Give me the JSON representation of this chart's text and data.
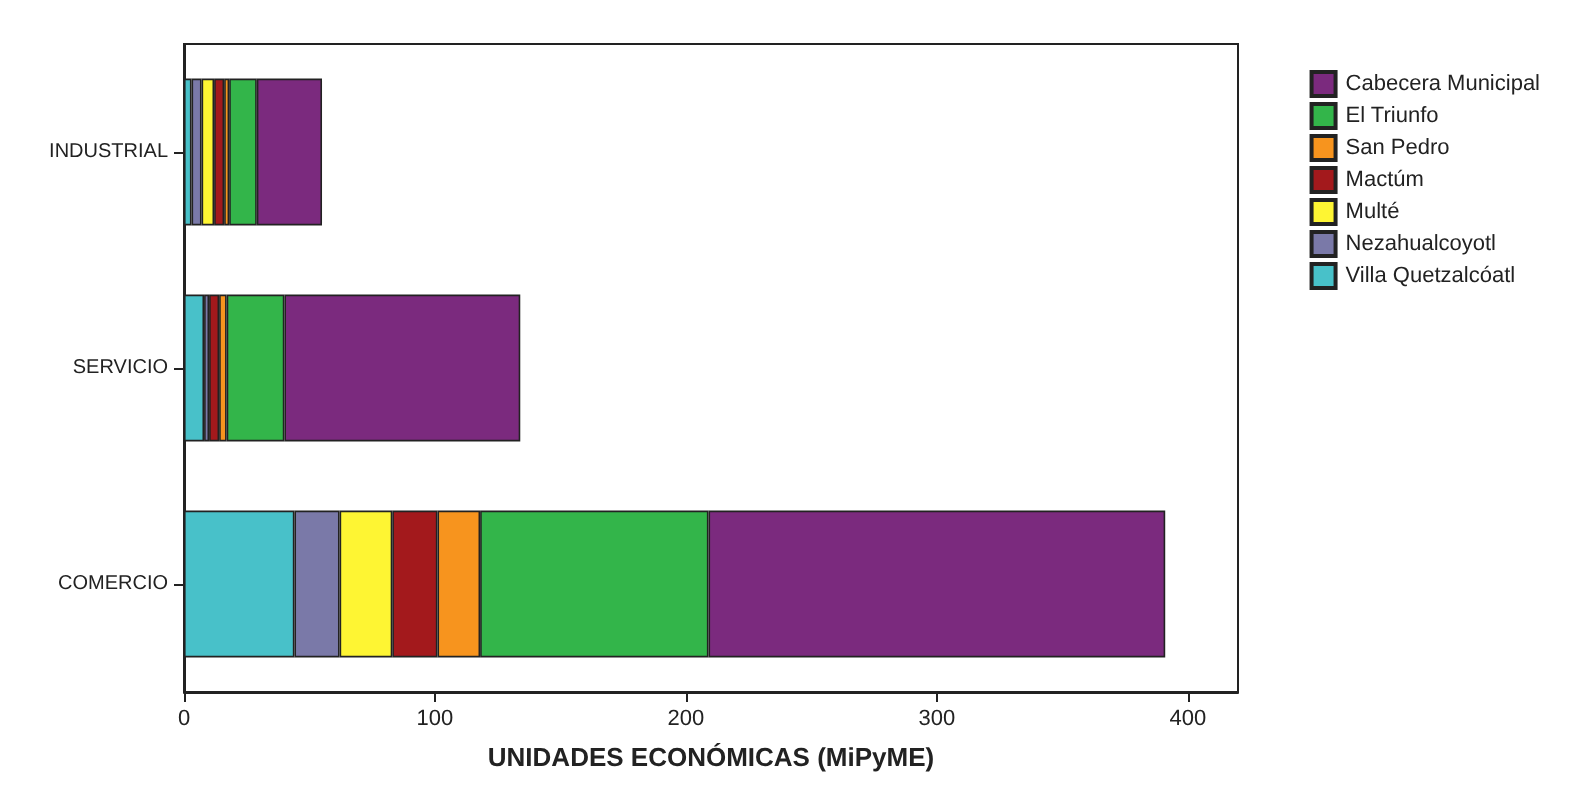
{
  "chart_data": {
    "type": "bar",
    "orientation": "horizontal",
    "stacked": true,
    "xlabel": "UNIDADES ECONÓMICAS (MiPyME)",
    "categories": [
      "INDUSTRIAL",
      "SERVICIO",
      "COMERCIO"
    ],
    "xlim": [
      0,
      420
    ],
    "xticks": [
      0,
      100,
      200,
      300,
      400
    ],
    "grid": false,
    "legend": "right",
    "series": [
      {
        "name": "Villa Quetzalcóatl",
        "color": "#48c1c9",
        "values": [
          3,
          8,
          44
        ]
      },
      {
        "name": "Nezahualcoyotl",
        "color": "#7a79a8",
        "values": [
          4,
          2,
          18
        ]
      },
      {
        "name": "Multé",
        "color": "#fef533",
        "values": [
          5,
          null,
          21
        ]
      },
      {
        "name": "Mactúm",
        "color": "#a3191c",
        "values": [
          4,
          4,
          18
        ]
      },
      {
        "name": "San Pedro",
        "color": "#f7941e",
        "values": [
          2,
          3,
          17
        ]
      },
      {
        "name": "El Triunfo",
        "color": "#33b54a",
        "values": [
          11,
          23,
          91
        ]
      },
      {
        "name": "Cabecera Municipal",
        "color": "#7b2a7e",
        "values": [
          26,
          94,
          182
        ]
      }
    ]
  }
}
